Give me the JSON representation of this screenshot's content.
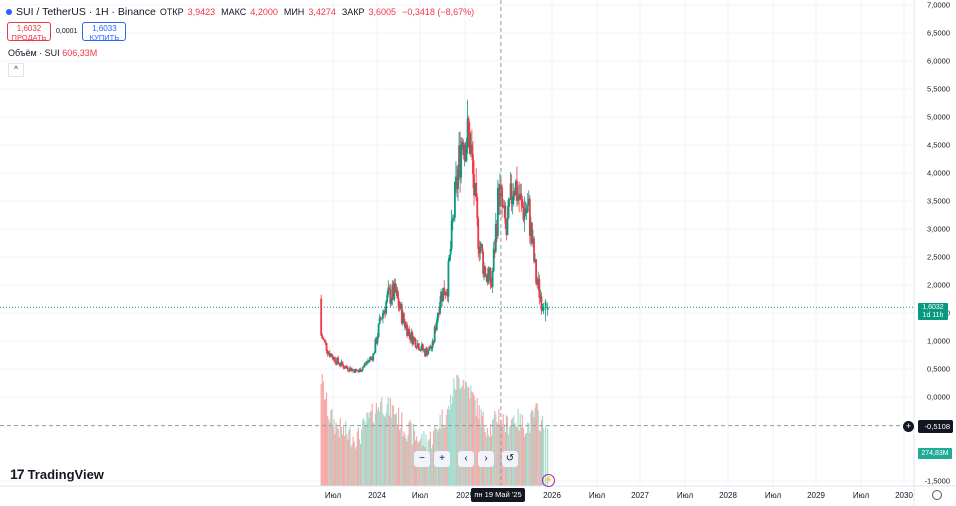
{
  "legend": {
    "symbol": "SUI / TetherUS · 1H · Binance",
    "open_label": "ОТКР",
    "open": "3,9423",
    "high_label": "МАКС",
    "high": "4,2000",
    "low_label": "МИН",
    "low": "3,4274",
    "close_label": "ЗАКР",
    "close": "3,6005",
    "change": "−0,3418 (−8,67%)"
  },
  "trade": {
    "sell_price": "1,6032",
    "sell_label": "ПРОДАТЬ",
    "spread": "0,0001",
    "buy_price": "1,6033",
    "buy_label": "КУПИТЬ"
  },
  "volume_legend": {
    "label": "Объём · SUI",
    "value": "606,33M"
  },
  "collapse_icon": "chevron-up-icon",
  "price_axis": {
    "ticks": [
      "7,0000",
      "6,5000",
      "6,0000",
      "5,5000",
      "5,0000",
      "4,5000",
      "4,0000",
      "3,5000",
      "3,0000",
      "2,5000",
      "2,0000",
      "1,5000",
      "1,0000",
      "0,5000",
      "0,0000",
      "-1,5000"
    ],
    "current_price": "1,6032",
    "countdown": "1d 11h",
    "crosshair_value": "-0,5108",
    "volume_value": "274,83M"
  },
  "time_axis": {
    "labels": [
      "Июл",
      "2024",
      "Июл",
      "2025",
      "2026",
      "Июл",
      "2027",
      "Июл",
      "2028",
      "Июл",
      "2029",
      "Июл",
      "2030"
    ],
    "crosshair_date": "пн 19 Май '25"
  },
  "nav_controls": {
    "zoom_out": "−",
    "zoom_in": "+",
    "scroll_left": "‹",
    "scroll_right": "›",
    "reset": "↺"
  },
  "brand": {
    "logo": "17",
    "name": "TradingView"
  },
  "colors": {
    "up": "#089981",
    "down": "#f23645",
    "up_volume": "#a5dccf",
    "down_volume": "#f7a9a7",
    "accent": "#2962ff"
  },
  "chart_data": {
    "type": "candlestick",
    "title": "SUI / TetherUS · 1H · Binance",
    "xlabel": "",
    "ylabel": "",
    "ylim": [
      -1.5,
      7.0
    ],
    "x": [
      "2023-05",
      "2023-06",
      "2023-07",
      "2023-08",
      "2023-09",
      "2023-10",
      "2023-11",
      "2023-12",
      "2024-01",
      "2024-02",
      "2024-03",
      "2024-04",
      "2024-05",
      "2024-06",
      "2024-07",
      "2024-08",
      "2024-09",
      "2024-10",
      "2024-11",
      "2024-12",
      "2025-01",
      "2025-02",
      "2025-03",
      "2025-04",
      "2025-05",
      "2025-06",
      "2025-07",
      "2025-08",
      "2025-09",
      "2025-10",
      "2025-11"
    ],
    "close": [
      1.1,
      0.8,
      0.65,
      0.55,
      0.5,
      0.45,
      0.6,
      0.75,
      1.4,
      1.8,
      1.85,
      1.4,
      1.1,
      0.95,
      0.8,
      0.9,
      1.8,
      2.0,
      3.5,
      4.7,
      4.6,
      3.0,
      2.3,
      2.0,
      3.7,
      2.9,
      3.9,
      3.4,
      3.3,
      2.1,
      1.6
    ],
    "volume_ylim": [
      0,
      1000
    ],
    "volume": [
      900,
      600,
      500,
      450,
      420,
      400,
      520,
      600,
      700,
      650,
      620,
      500,
      450,
      400,
      380,
      400,
      550,
      600,
      850,
      900,
      800,
      650,
      520,
      480,
      600,
      500,
      580,
      520,
      500,
      620,
      480
    ],
    "current_price": 1.6032,
    "crosshair_price": -0.5108,
    "crosshair_date": "2025-05-19",
    "grid": true,
    "volume_pane": true
  }
}
